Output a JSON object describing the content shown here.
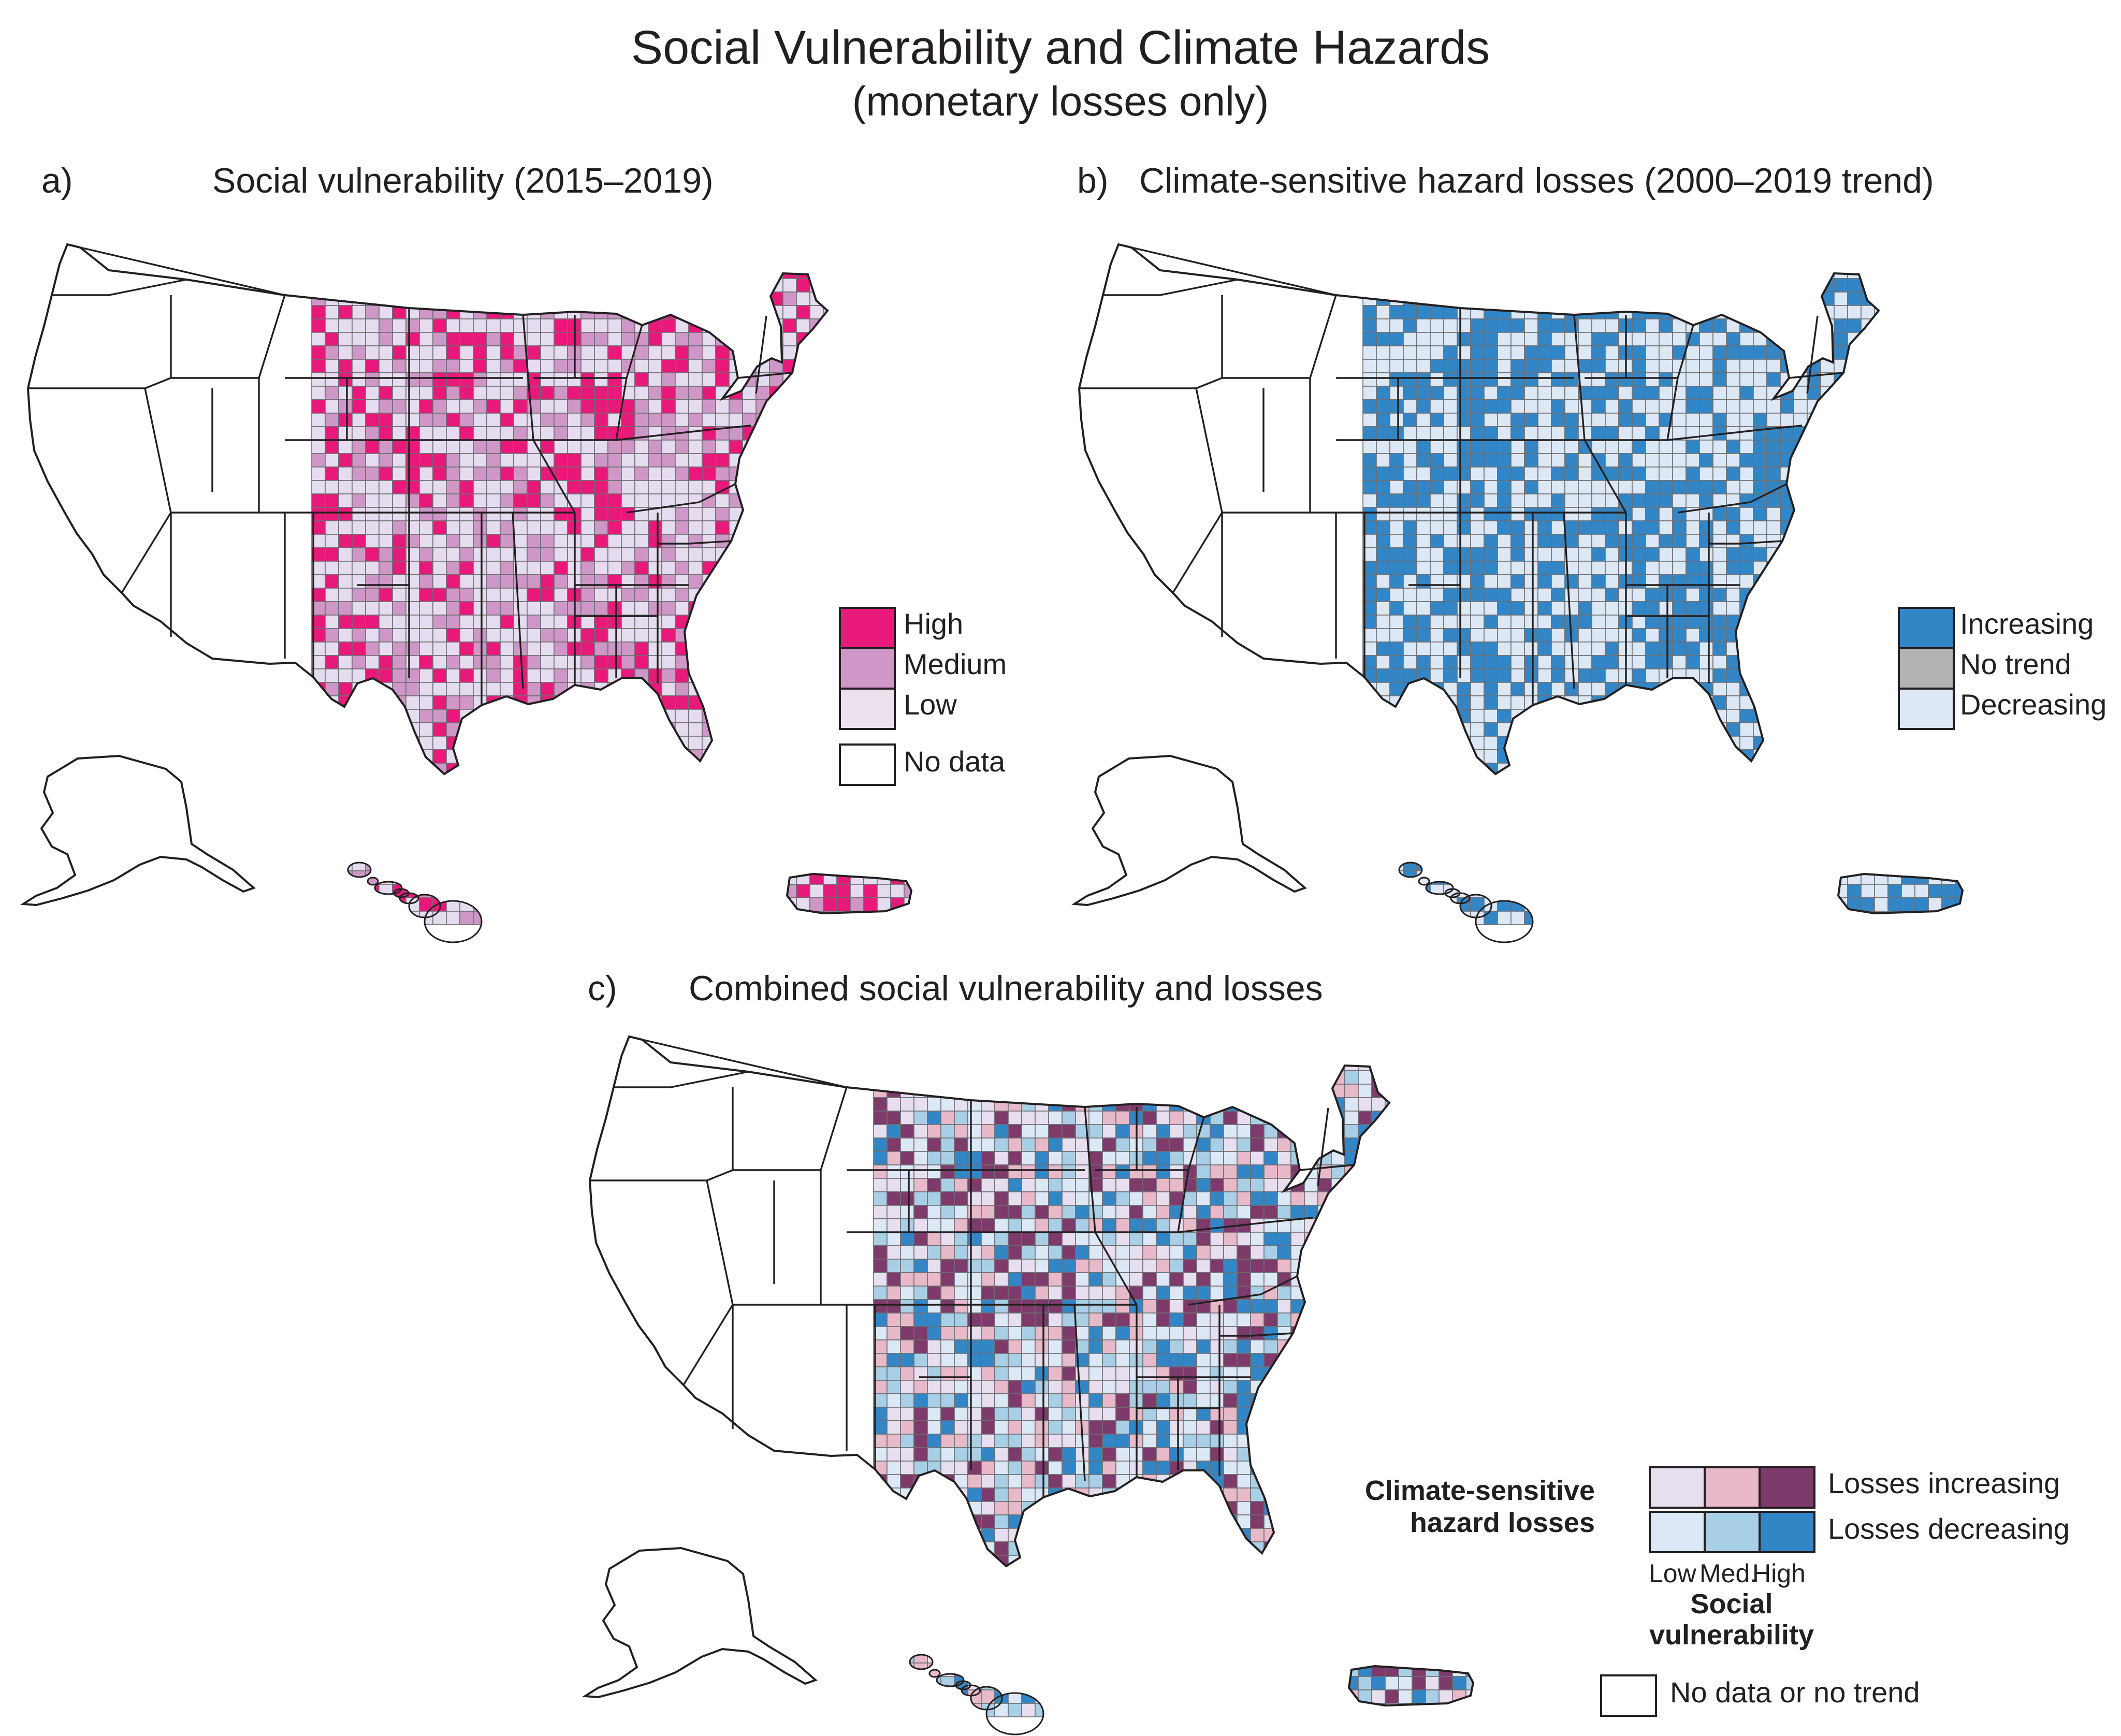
{
  "title": "Social Vulnerability and Climate Hazards",
  "subtitle": "(monetary losses only)",
  "panels": [
    {
      "letter": "a)",
      "title": "Social vulnerability (2015–2019)",
      "palette": [
        "#e6dcef",
        "#e6dcef",
        "#cf97c8",
        "#e8197a"
      ],
      "legend": [
        {
          "label": "High",
          "color": "#e8197a"
        },
        {
          "label": "Medium",
          "color": "#cf97c8"
        },
        {
          "label": "Low",
          "color": "#ece0ef"
        },
        {
          "label": "No data",
          "color": "#ffffff"
        }
      ]
    },
    {
      "letter": "b)",
      "title": "Climate-sensitive hazard losses (2000–2019 trend)",
      "palette": [
        "#3386c6",
        "#3386c6",
        "#dce8f5",
        "#dce8f5"
      ],
      "legend": [
        {
          "label": "Increasing",
          "color": "#3386c6"
        },
        {
          "label": "No trend",
          "color": "#b3b3b3"
        },
        {
          "label": "Decreasing",
          "color": "#dce8f5"
        }
      ]
    },
    {
      "letter": "c)",
      "title": "Combined social vulnerability and losses",
      "palette": [
        "#e7dff0",
        "#dce8f5",
        "#e8b9c8",
        "#a8cfe6",
        "#7d3a6b",
        "#3386c6"
      ],
      "legend": {
        "row_labels": [
          "Losses increasing",
          "Losses decreasing"
        ],
        "increasing_colors": [
          "#e7dff0",
          "#e8b9c8",
          "#7d3a6b"
        ],
        "decreasing_colors": [
          "#dce8f5",
          "#a8cfe6",
          "#3386c6"
        ],
        "column_labels": [
          "Low",
          "Med.",
          "High"
        ],
        "y_title": "Climate-sensitive hazard losses",
        "x_title": "Social vulnerability",
        "no_data_label": "No data or no trend"
      }
    }
  ]
}
